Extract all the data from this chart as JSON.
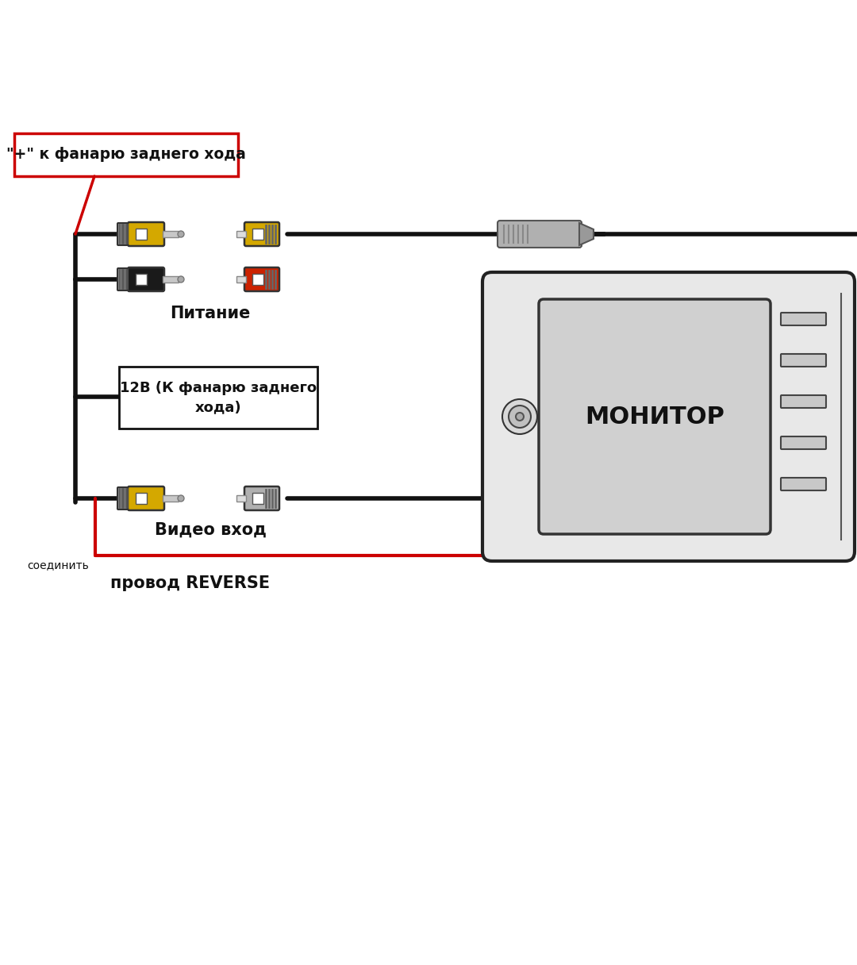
{
  "bg_color": "#ffffff",
  "label_plus": "\"+\" к фанарю заднего хода",
  "label_питание": "Питание",
  "label_12v": "12В (К фанарю заднего\nхода)",
  "label_video": "Видео вход",
  "label_соединить": "соединить",
  "label_reverse": "провод REVERSE",
  "label_monitor": "МОНИТОР",
  "wire_color_black": "#111111",
  "wire_color_red": "#cc0000",
  "connector_yellow": "#d4a800",
  "connector_black": "#1a1a1a",
  "connector_red": "#cc2200",
  "connector_gray": "#aaaaaa",
  "label_box_border": "#cc0000",
  "label_12v_border": "#111111",
  "monitor_body": "#e8e8e8",
  "monitor_screen": "#d0d0d0"
}
